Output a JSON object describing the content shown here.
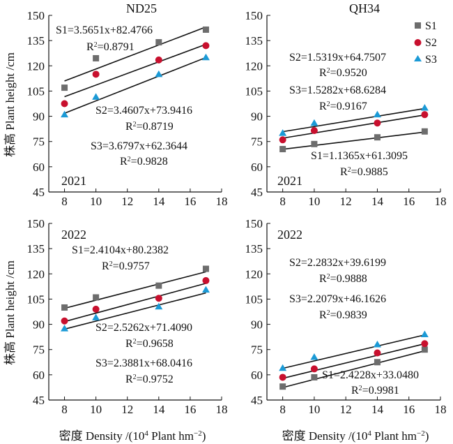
{
  "figure": {
    "ylabel": "株高 Plant height /cm",
    "xlabel_prefix": "密度 Density /(10",
    "xlabel_sup": "4",
    "xlabel_suffix": " Plant hm",
    "xlabel_sup2": "−2",
    "xlabel_close": ")"
  },
  "legend": [
    {
      "name": "S1",
      "color": "#6d6d6d",
      "marker": "square"
    },
    {
      "name": "S2",
      "color": "#c8102e",
      "marker": "circle"
    },
    {
      "name": "S3",
      "color": "#1b9ad6",
      "marker": "triangle"
    }
  ],
  "chart_data": [
    {
      "type": "scatter",
      "title": "ND25",
      "year": "2021",
      "xlim": [
        7,
        18
      ],
      "ylim": [
        45,
        150
      ],
      "xticks": [
        8,
        10,
        12,
        14,
        16,
        18
      ],
      "yticks": [
        45,
        60,
        75,
        90,
        105,
        120,
        135,
        150
      ],
      "series": [
        {
          "name": "S1",
          "x": [
            8,
            10,
            14,
            17
          ],
          "y": [
            107,
            124.5,
            134,
            141.5
          ],
          "fit": {
            "slope": 3.5651,
            "intercept": 82.4766
          },
          "equation": "S1=3.5651x+82.4766",
          "r2": "=0.8791"
        },
        {
          "name": "S2",
          "x": [
            8,
            10,
            14,
            17
          ],
          "y": [
            97.5,
            115,
            123.5,
            132
          ],
          "fit": {
            "slope": 3.4607,
            "intercept": 73.9416
          },
          "equation": "S2=3.4607x+73.9416",
          "r2": "=0.8719"
        },
        {
          "name": "S3",
          "x": [
            8,
            10,
            14,
            17
          ],
          "y": [
            91,
            101.5,
            115,
            125
          ],
          "fit": {
            "slope": 3.6797,
            "intercept": 62.3644
          },
          "equation": "S3=3.6797x+62.3644",
          "r2": "=0.9828"
        }
      ]
    },
    {
      "type": "scatter",
      "title": "QH34",
      "year": "2021",
      "xlim": [
        7,
        18
      ],
      "ylim": [
        45,
        150
      ],
      "xticks": [
        8,
        10,
        12,
        14,
        16,
        18
      ],
      "yticks": [
        45,
        60,
        75,
        90,
        105,
        120,
        135,
        150
      ],
      "series": [
        {
          "name": "S1",
          "x": [
            8,
            10,
            14,
            17
          ],
          "y": [
            70.5,
            73.5,
            77.5,
            81
          ],
          "fit": {
            "slope": 1.1365,
            "intercept": 61.3095
          },
          "equation": "S1=1.1365x+61.3095",
          "r2": "=0.9885"
        },
        {
          "name": "S2",
          "x": [
            8,
            10,
            14,
            17
          ],
          "y": [
            76,
            81.5,
            86,
            91
          ],
          "fit": {
            "slope": 1.5319,
            "intercept": 64.7507
          },
          "equation": "S2=1.5319x+64.7507",
          "r2": "=0.9520"
        },
        {
          "name": "S3",
          "x": [
            8,
            10,
            14,
            17
          ],
          "y": [
            80,
            86,
            91,
            95
          ],
          "fit": {
            "slope": 1.5282,
            "intercept": 68.6284
          },
          "equation": "S3=1.5282x+68.6284",
          "r2": "=0.9167"
        }
      ]
    },
    {
      "type": "scatter",
      "title": "",
      "year": "2022",
      "xlim": [
        7,
        18
      ],
      "ylim": [
        45,
        150
      ],
      "xticks": [
        8,
        10,
        12,
        14,
        16,
        18
      ],
      "yticks": [
        45,
        60,
        75,
        90,
        105,
        120,
        135,
        150
      ],
      "series": [
        {
          "name": "S1",
          "x": [
            8,
            10,
            14,
            17
          ],
          "y": [
            100,
            106,
            113,
            123
          ],
          "fit": {
            "slope": 2.4104,
            "intercept": 80.2382
          },
          "equation": "S1=2.4104x+80.2382",
          "r2": "=0.9757"
        },
        {
          "name": "S2",
          "x": [
            8,
            10,
            14,
            17
          ],
          "y": [
            92,
            99,
            105.5,
            116
          ],
          "fit": {
            "slope": 2.5262,
            "intercept": 71.409
          },
          "equation": "S2=2.5262x+71.4090",
          "r2": "=0.9658"
        },
        {
          "name": "S3",
          "x": [
            8,
            10,
            14,
            17
          ],
          "y": [
            87.5,
            94,
            100.5,
            110.5
          ],
          "fit": {
            "slope": 2.3881,
            "intercept": 68.0416
          },
          "equation": "S3=2.3881x+68.0416",
          "r2": "=0.9752"
        }
      ]
    },
    {
      "type": "scatter",
      "title": "",
      "year": "2022",
      "xlim": [
        7,
        18
      ],
      "ylim": [
        45,
        150
      ],
      "xticks": [
        8,
        10,
        12,
        14,
        16,
        18
      ],
      "yticks": [
        45,
        60,
        75,
        90,
        105,
        120,
        135,
        150
      ],
      "series": [
        {
          "name": "S1",
          "x": [
            8,
            10,
            14,
            17
          ],
          "y": [
            53,
            58.5,
            67.5,
            75
          ],
          "fit": {
            "slope": 2.4228,
            "intercept": 33.048
          },
          "equation": "S1=2.4228x+33.0480",
          "r2": "=0.9981"
        },
        {
          "name": "S2",
          "x": [
            8,
            10,
            14,
            17
          ],
          "y": [
            58.5,
            63.5,
            73,
            78.5
          ],
          "fit": {
            "slope": 2.2832,
            "intercept": 39.6199
          },
          "equation": "S2=2.2832x+39.6199",
          "r2": "=0.9888"
        },
        {
          "name": "S3",
          "x": [
            8,
            10,
            14,
            17
          ],
          "y": [
            64,
            70.5,
            78,
            84
          ],
          "fit": {
            "slope": 2.2079,
            "intercept": 46.1626
          },
          "equation": "S3=2.2079x+46.1626",
          "r2": "=0.9839"
        }
      ]
    }
  ]
}
